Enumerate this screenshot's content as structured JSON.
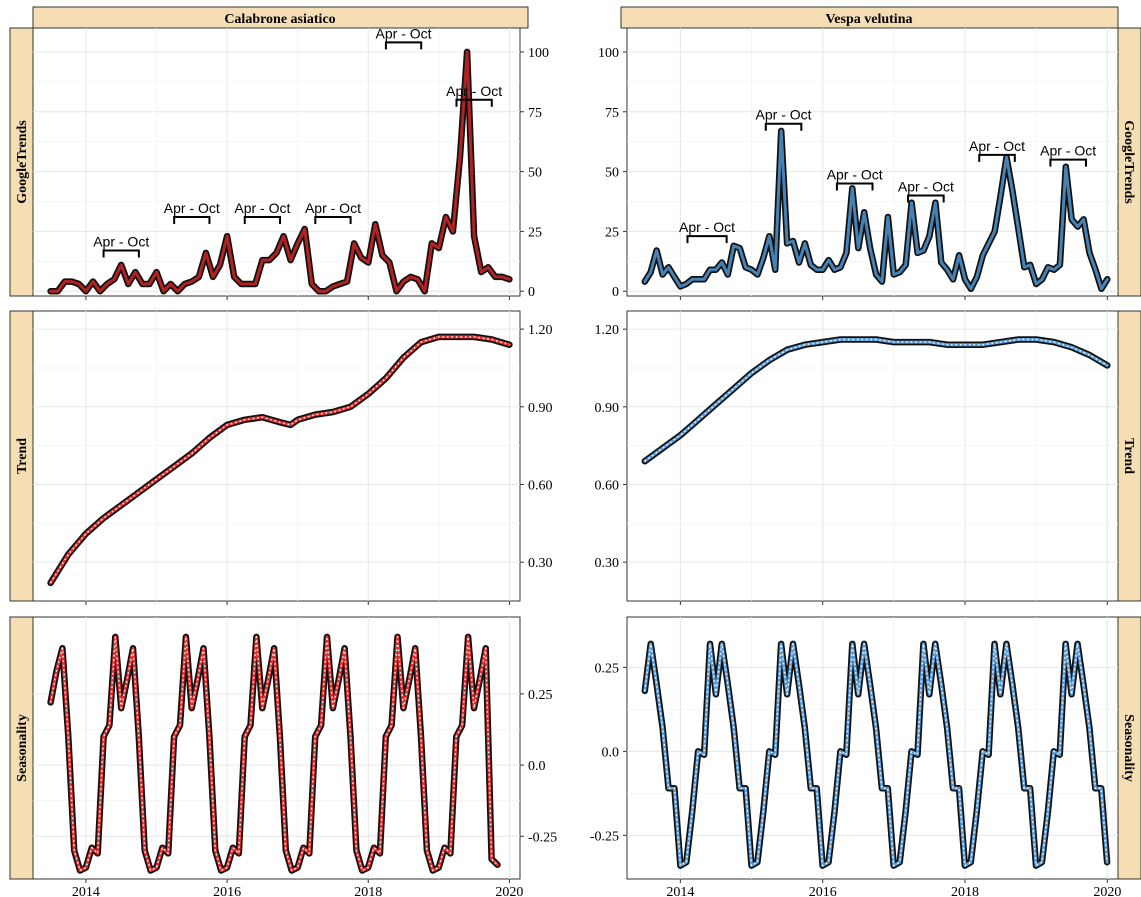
{
  "chart_data": [
    {
      "type": "line",
      "facet": "Calabrone asiatico",
      "row": "GoogleTrends",
      "color": "#b22222",
      "ylim": [
        -2,
        110
      ],
      "yticks": [
        "0",
        "25",
        "50",
        "75",
        "100"
      ],
      "x": [
        2013.5,
        2013.6,
        2013.7,
        2013.8,
        2013.9,
        2014.0,
        2014.1,
        2014.2,
        2014.3,
        2014.4,
        2014.5,
        2014.6,
        2014.7,
        2014.8,
        2014.9,
        2015.0,
        2015.1,
        2015.2,
        2015.3,
        2015.4,
        2015.5,
        2015.6,
        2015.7,
        2015.8,
        2015.9,
        2016.0,
        2016.1,
        2016.2,
        2016.3,
        2016.4,
        2016.5,
        2016.6,
        2016.7,
        2016.8,
        2016.9,
        2017.0,
        2017.1,
        2017.2,
        2017.3,
        2017.4,
        2017.5,
        2017.6,
        2017.7,
        2017.8,
        2017.9,
        2018.0,
        2018.1,
        2018.2,
        2018.3,
        2018.4,
        2018.5,
        2018.6,
        2018.7,
        2018.8,
        2018.9,
        2019.0,
        2019.1,
        2019.2,
        2019.3,
        2019.4,
        2019.5,
        2019.6,
        2019.7,
        2019.8,
        2019.9,
        2020.0
      ],
      "values": [
        0,
        0,
        4,
        4,
        3,
        0,
        4,
        0,
        3,
        5,
        11,
        3,
        8,
        3,
        3,
        8,
        0,
        3,
        0,
        3,
        4,
        6,
        16,
        6,
        11,
        23,
        6,
        3,
        3,
        3,
        13,
        13,
        16,
        23,
        13,
        20,
        26,
        3,
        0,
        0,
        2,
        3,
        4,
        20,
        14,
        12,
        28,
        15,
        12,
        0,
        4,
        6,
        5,
        0,
        20,
        18,
        31,
        25,
        56,
        100,
        23,
        8,
        10,
        6,
        6,
        5
      ],
      "annotations": [
        {
          "label": "Apr - Oct",
          "x0": 2014.25,
          "x1": 2014.75,
          "y": 17
        },
        {
          "label": "Apr - Oct",
          "x0": 2015.25,
          "x1": 2015.75,
          "y": 31
        },
        {
          "label": "Apr - Oct",
          "x0": 2016.25,
          "x1": 2016.75,
          "y": 31
        },
        {
          "label": "Apr - Oct",
          "x0": 2017.25,
          "x1": 2017.75,
          "y": 31
        },
        {
          "label": "Apr - Oct",
          "x0": 2018.25,
          "x1": 2018.75,
          "y": 104
        },
        {
          "label": "Apr - Oct",
          "x0": 2019.25,
          "x1": 2019.75,
          "y": 80
        }
      ]
    },
    {
      "type": "line",
      "facet": "Vespa velutina",
      "row": "GoogleTrends",
      "color": "#4682b4",
      "ylim": [
        -2,
        110
      ],
      "yticks": [
        "0",
        "25",
        "50",
        "75",
        "100"
      ],
      "values": [
        4,
        8,
        17,
        7,
        10,
        6,
        2,
        3,
        5,
        5,
        5,
        9,
        9,
        12,
        7,
        19,
        18,
        10,
        9,
        7,
        14,
        23,
        9,
        67,
        20,
        21,
        12,
        20,
        11,
        9,
        9,
        13,
        9,
        10,
        16,
        43,
        18,
        33,
        18,
        7,
        4,
        31,
        7,
        8,
        11,
        37,
        16,
        17,
        23,
        37,
        12,
        9,
        5,
        15,
        5,
        1,
        6,
        15,
        20,
        25,
        40,
        56,
        42,
        26,
        10,
        11,
        3,
        5,
        10,
        9,
        11,
        52,
        30,
        27,
        30,
        16,
        9,
        1,
        5
      ],
      "annotations": [
        {
          "label": "Apr - Oct",
          "x0": 2014.1,
          "x1": 2014.65,
          "y": 23
        },
        {
          "label": "Apr - Oct",
          "x0": 2015.2,
          "x1": 2015.7,
          "y": 70
        },
        {
          "label": "Apr - Oct",
          "x0": 2016.2,
          "x1": 2016.7,
          "y": 45
        },
        {
          "label": "Apr - Oct",
          "x0": 2017.2,
          "x1": 2017.7,
          "y": 40
        },
        {
          "label": "Apr - Oct",
          "x0": 2018.2,
          "x1": 2018.7,
          "y": 57
        },
        {
          "label": "Apr - Oct",
          "x0": 2019.2,
          "x1": 2019.7,
          "y": 55
        }
      ]
    },
    {
      "type": "line",
      "facet": "Calabrone asiatico",
      "row": "Trend",
      "color": "#e03131",
      "ylim": [
        0.15,
        1.27
      ],
      "yticks": [
        "0.30",
        "0.60",
        "0.90",
        "1.20"
      ],
      "x": [
        2013.5,
        2013.75,
        2014.0,
        2014.25,
        2014.5,
        2014.75,
        2015.0,
        2015.25,
        2015.5,
        2015.75,
        2016.0,
        2016.25,
        2016.5,
        2016.75,
        2016.9,
        2017.0,
        2017.25,
        2017.5,
        2017.75,
        2018.0,
        2018.25,
        2018.5,
        2018.75,
        2019.0,
        2019.25,
        2019.5,
        2019.75,
        2020.0
      ],
      "values": [
        0.22,
        0.33,
        0.41,
        0.47,
        0.52,
        0.57,
        0.62,
        0.67,
        0.72,
        0.78,
        0.83,
        0.85,
        0.86,
        0.84,
        0.83,
        0.85,
        0.87,
        0.88,
        0.9,
        0.95,
        1.01,
        1.09,
        1.15,
        1.17,
        1.17,
        1.17,
        1.16,
        1.14
      ]
    },
    {
      "type": "line",
      "facet": "Vespa velutina",
      "row": "Trend",
      "color": "#5b9bd5",
      "ylim": [
        0.15,
        1.27
      ],
      "yticks": [
        "0.30",
        "0.60",
        "0.90",
        "1.20"
      ],
      "x": [
        2013.5,
        2013.75,
        2014.0,
        2014.25,
        2014.5,
        2014.75,
        2015.0,
        2015.25,
        2015.5,
        2015.75,
        2016.0,
        2016.25,
        2016.5,
        2016.75,
        2017.0,
        2017.25,
        2017.5,
        2017.75,
        2018.0,
        2018.25,
        2018.5,
        2018.75,
        2019.0,
        2019.25,
        2019.5,
        2019.75,
        2020.0
      ],
      "values": [
        0.69,
        0.74,
        0.79,
        0.85,
        0.91,
        0.97,
        1.03,
        1.08,
        1.12,
        1.14,
        1.15,
        1.16,
        1.16,
        1.16,
        1.15,
        1.15,
        1.15,
        1.14,
        1.14,
        1.14,
        1.15,
        1.16,
        1.16,
        1.15,
        1.13,
        1.1,
        1.06
      ]
    },
    {
      "type": "line",
      "facet": "Calabrone asiatico",
      "row": "Seasonality",
      "color": "#e03131",
      "ylim": [
        -0.4,
        0.52
      ],
      "yticks": [
        "-0.25",
        "0.0",
        "0.25"
      ],
      "x_start": 2013.5,
      "x_step": 0.0833,
      "values": [
        0.22,
        0.33,
        0.41,
        0.1,
        -0.3,
        -0.37,
        -0.36,
        -0.29,
        -0.31,
        0.1,
        0.14,
        0.45,
        0.2,
        0.3,
        0.41,
        0.1,
        -0.3,
        -0.37,
        -0.36,
        -0.29,
        -0.31,
        0.1,
        0.14,
        0.45,
        0.2,
        0.3,
        0.41,
        0.1,
        -0.3,
        -0.37,
        -0.36,
        -0.29,
        -0.31,
        0.1,
        0.14,
        0.45,
        0.2,
        0.3,
        0.41,
        0.1,
        -0.3,
        -0.37,
        -0.36,
        -0.29,
        -0.31,
        0.1,
        0.14,
        0.45,
        0.2,
        0.3,
        0.41,
        0.1,
        -0.3,
        -0.37,
        -0.36,
        -0.29,
        -0.31,
        0.1,
        0.14,
        0.45,
        0.2,
        0.3,
        0.41,
        0.1,
        -0.3,
        -0.37,
        -0.36,
        -0.29,
        -0.31,
        0.1,
        0.14,
        0.45,
        0.2,
        0.3,
        0.41,
        -0.33,
        -0.35
      ]
    },
    {
      "type": "line",
      "facet": "Vespa velutina",
      "row": "Seasonality",
      "color": "#5b9bd5",
      "ylim": [
        -0.38,
        0.4
      ],
      "yticks": [
        "-0.25",
        "0.0",
        "0.25"
      ],
      "x_start": 2013.5,
      "x_step": 0.0833,
      "values": [
        0.18,
        0.32,
        0.2,
        0.07,
        -0.11,
        -0.11,
        -0.34,
        -0.33,
        -0.18,
        0.0,
        -0.01,
        0.32,
        0.17,
        0.32,
        0.2,
        0.07,
        -0.11,
        -0.11,
        -0.34,
        -0.33,
        -0.18,
        0.0,
        -0.01,
        0.32,
        0.17,
        0.32,
        0.2,
        0.07,
        -0.11,
        -0.11,
        -0.34,
        -0.33,
        -0.18,
        0.0,
        -0.01,
        0.32,
        0.17,
        0.32,
        0.2,
        0.07,
        -0.11,
        -0.11,
        -0.34,
        -0.33,
        -0.18,
        0.0,
        -0.01,
        0.32,
        0.17,
        0.32,
        0.2,
        0.07,
        -0.11,
        -0.11,
        -0.34,
        -0.33,
        -0.18,
        0.0,
        -0.01,
        0.32,
        0.17,
        0.32,
        0.2,
        0.07,
        -0.11,
        -0.11,
        -0.34,
        -0.33,
        -0.18,
        0.0,
        -0.01,
        0.32,
        0.17,
        0.32,
        0.2,
        0.07,
        -0.11,
        -0.11,
        -0.33
      ]
    }
  ],
  "facets": [
    "Calabrone asiatico",
    "Vespa velutina"
  ],
  "row_labels": [
    "GoogleTrends",
    "Trend",
    "Seasonality"
  ],
  "xticks": [
    "2014",
    "2016",
    "2018",
    "2020"
  ],
  "xlim": [
    2013.25,
    2020.15
  ],
  "grid": true,
  "line_style": "thick dark outline with colored core; trend and seasonality cores dotted white"
}
